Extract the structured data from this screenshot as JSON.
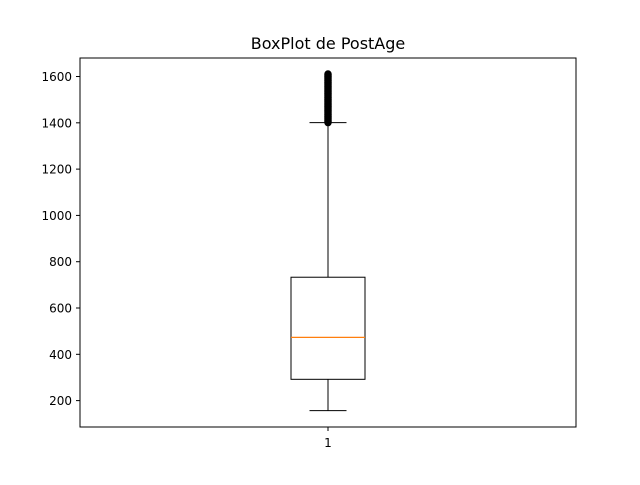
{
  "chart_data": {
    "type": "box",
    "title": "BoxPlot de PostAge",
    "xlabel": "",
    "ylabel": "",
    "categories": [
      "1"
    ],
    "boxes": [
      {
        "category": "1",
        "whisker_low": 157,
        "q1": 292,
        "median": 473,
        "q3": 733,
        "whisker_high": 1401,
        "outliers_range": [
          1401,
          1611
        ]
      }
    ],
    "ylim": [
      86,
      1680
    ],
    "yticks": [
      200,
      400,
      600,
      800,
      1000,
      1200,
      1400,
      1600
    ],
    "grid": false,
    "colors": {
      "box": "#000000",
      "median": "#ff7f0e",
      "outlier": "#000000"
    }
  }
}
